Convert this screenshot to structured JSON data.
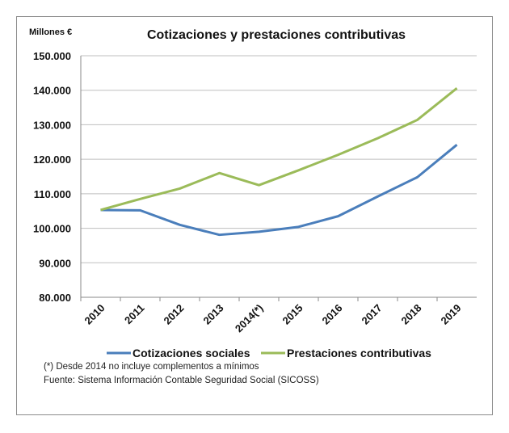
{
  "chart_data": {
    "type": "line",
    "title": "Cotizaciones y prestaciones contributivas",
    "ylabel": "Millones €",
    "xlabel": "",
    "categories": [
      "2010",
      "2011",
      "2012",
      "2013",
      "2014(*)",
      "2015",
      "2016",
      "2017",
      "2018",
      "2019"
    ],
    "ylim": [
      80000,
      150000
    ],
    "yticks": [
      80000,
      90000,
      100000,
      110000,
      120000,
      130000,
      140000,
      150000
    ],
    "ytick_labels": [
      "80.000",
      "90.000",
      "100.000",
      "110.000",
      "120.000",
      "130.000",
      "140.000",
      "150.000"
    ],
    "grid": true,
    "legend_position": "bottom",
    "series": [
      {
        "name": "Cotizaciones sociales",
        "color": "#4a7ebb",
        "values": [
          105300,
          105200,
          101000,
          98100,
          99000,
          100400,
          103500,
          109200,
          114800,
          124200
        ]
      },
      {
        "name": "Prestaciones contributivas",
        "color": "#9bbb59",
        "values": [
          105300,
          108500,
          111500,
          116000,
          112500,
          116800,
          121300,
          126100,
          131400,
          140600
        ]
      }
    ]
  },
  "notes": [
    "(*) Desde 2014 no incluye complementos a mínimos",
    "Fuente: Sistema Información Contable Seguridad Social (SICOSS)"
  ]
}
